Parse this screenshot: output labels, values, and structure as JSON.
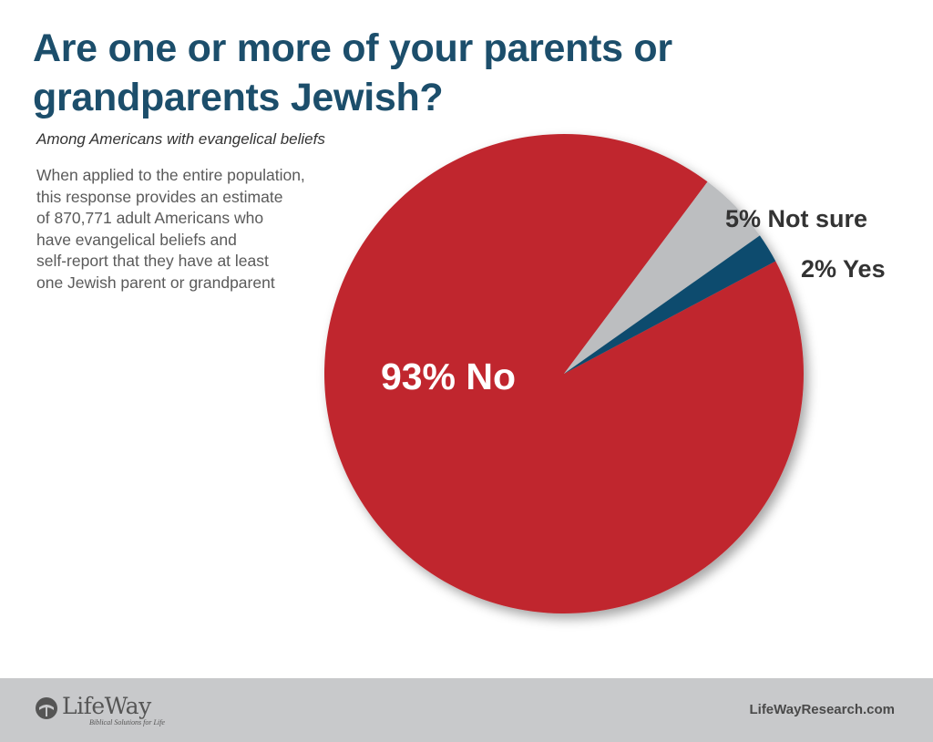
{
  "header": {
    "title": "Are one or more of your parents or grandparents Jewish?",
    "subtitle": "Among Americans with evangelical beliefs",
    "note": "When applied to the entire population,\nthis response provides an estimate\nof 870,771 adult Americans who\nhave evangelical beliefs and\nself-report that they have at least\none Jewish parent or grandparent"
  },
  "chart_data": {
    "type": "pie",
    "title": "Are one or more of your parents or grandparents Jewish?",
    "subtitle": "Among Americans with evangelical beliefs",
    "unit": "%",
    "slices": [
      {
        "label": "No",
        "value": 93,
        "display": "93% No",
        "color": "#c0272d"
      },
      {
        "label": "Not sure",
        "value": 5,
        "display": "5% Not sure",
        "color": "#bcbec0"
      },
      {
        "label": "Yes",
        "value": 2,
        "display": "2% Yes",
        "color": "#0f4c6e"
      }
    ]
  },
  "footer": {
    "logo_text": "LifeWay",
    "logo_tagline": "Biblical Solutions for Life",
    "website": "LifeWayResearch.com"
  },
  "colors": {
    "title": "#1c4e6b",
    "footer_bg": "#c8c9cb"
  }
}
